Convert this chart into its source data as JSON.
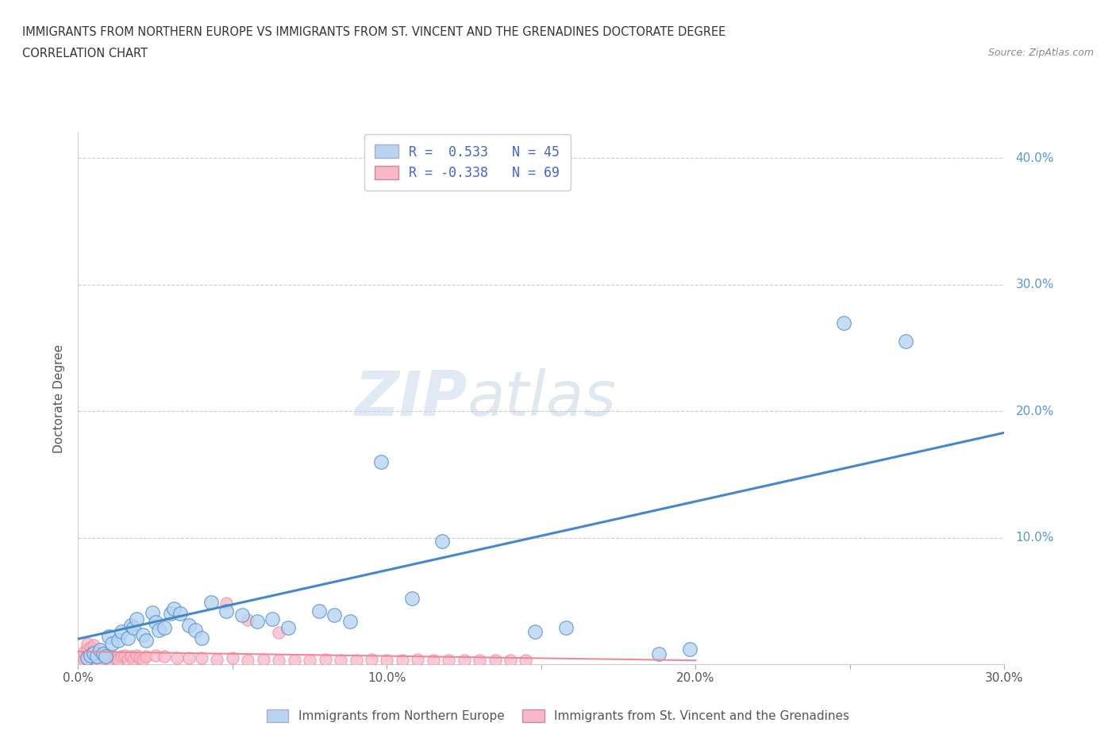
{
  "title_line1": "IMMIGRANTS FROM NORTHERN EUROPE VS IMMIGRANTS FROM ST. VINCENT AND THE GRENADINES DOCTORATE DEGREE",
  "title_line2": "CORRELATION CHART",
  "source": "Source: ZipAtlas.com",
  "ylabel": "Doctorate Degree",
  "x_min": 0.0,
  "x_max": 0.3,
  "y_min": 0.0,
  "y_max": 0.42,
  "x_ticks": [
    0.0,
    0.05,
    0.1,
    0.15,
    0.2,
    0.25,
    0.3
  ],
  "x_tick_labels": [
    "0.0%",
    "",
    "10.0%",
    "",
    "20.0%",
    "",
    "30.0%"
  ],
  "y_ticks": [
    0.0,
    0.1,
    0.2,
    0.3,
    0.4
  ],
  "y_tick_labels_right": [
    "",
    "10.0%",
    "20.0%",
    "30.0%",
    "40.0%"
  ],
  "legend1_label": "Immigrants from Northern Europe",
  "legend2_label": "Immigrants from St. Vincent and the Grenadines",
  "r1": 0.533,
  "n1": 45,
  "r2": -0.338,
  "n2": 69,
  "color_blue": "#b8d4f0",
  "color_pink": "#f8b8c8",
  "color_line_blue": "#4488cc",
  "color_line_pink": "#ee8899",
  "watermark_zip": "ZIP",
  "watermark_atlas": "atlas",
  "blue_points": [
    [
      0.003,
      0.005
    ],
    [
      0.004,
      0.007
    ],
    [
      0.005,
      0.009
    ],
    [
      0.006,
      0.006
    ],
    [
      0.007,
      0.011
    ],
    [
      0.008,
      0.008
    ],
    [
      0.009,
      0.006
    ],
    [
      0.01,
      0.022
    ],
    [
      0.011,
      0.016
    ],
    [
      0.013,
      0.019
    ],
    [
      0.014,
      0.026
    ],
    [
      0.016,
      0.021
    ],
    [
      0.017,
      0.031
    ],
    [
      0.018,
      0.029
    ],
    [
      0.019,
      0.036
    ],
    [
      0.021,
      0.023
    ],
    [
      0.022,
      0.019
    ],
    [
      0.024,
      0.041
    ],
    [
      0.025,
      0.033
    ],
    [
      0.026,
      0.027
    ],
    [
      0.028,
      0.029
    ],
    [
      0.03,
      0.04
    ],
    [
      0.031,
      0.044
    ],
    [
      0.033,
      0.04
    ],
    [
      0.036,
      0.031
    ],
    [
      0.038,
      0.027
    ],
    [
      0.04,
      0.021
    ],
    [
      0.043,
      0.049
    ],
    [
      0.048,
      0.042
    ],
    [
      0.053,
      0.039
    ],
    [
      0.058,
      0.034
    ],
    [
      0.063,
      0.036
    ],
    [
      0.068,
      0.029
    ],
    [
      0.078,
      0.042
    ],
    [
      0.083,
      0.039
    ],
    [
      0.088,
      0.034
    ],
    [
      0.098,
      0.16
    ],
    [
      0.108,
      0.052
    ],
    [
      0.118,
      0.097
    ],
    [
      0.148,
      0.026
    ],
    [
      0.158,
      0.029
    ],
    [
      0.188,
      0.008
    ],
    [
      0.198,
      0.012
    ],
    [
      0.248,
      0.27
    ],
    [
      0.268,
      0.255
    ]
  ],
  "pink_points": [
    [
      0.002,
      0.005
    ],
    [
      0.002,
      0.01
    ],
    [
      0.003,
      0.007
    ],
    [
      0.003,
      0.012
    ],
    [
      0.003,
      0.016
    ],
    [
      0.004,
      0.006
    ],
    [
      0.004,
      0.009
    ],
    [
      0.004,
      0.013
    ],
    [
      0.005,
      0.005
    ],
    [
      0.005,
      0.008
    ],
    [
      0.005,
      0.011
    ],
    [
      0.005,
      0.015
    ],
    [
      0.006,
      0.006
    ],
    [
      0.006,
      0.009
    ],
    [
      0.007,
      0.005
    ],
    [
      0.007,
      0.008
    ],
    [
      0.008,
      0.006
    ],
    [
      0.008,
      0.01
    ],
    [
      0.009,
      0.005
    ],
    [
      0.009,
      0.008
    ],
    [
      0.01,
      0.006
    ],
    [
      0.01,
      0.004
    ],
    [
      0.011,
      0.007
    ],
    [
      0.012,
      0.005
    ],
    [
      0.013,
      0.004
    ],
    [
      0.014,
      0.006
    ],
    [
      0.015,
      0.007
    ],
    [
      0.016,
      0.004
    ],
    [
      0.017,
      0.006
    ],
    [
      0.018,
      0.004
    ],
    [
      0.019,
      0.007
    ],
    [
      0.02,
      0.005
    ],
    [
      0.021,
      0.004
    ],
    [
      0.022,
      0.006
    ],
    [
      0.025,
      0.007
    ],
    [
      0.028,
      0.006
    ],
    [
      0.032,
      0.005
    ],
    [
      0.036,
      0.005
    ],
    [
      0.04,
      0.005
    ],
    [
      0.045,
      0.004
    ],
    [
      0.05,
      0.005
    ],
    [
      0.055,
      0.003
    ],
    [
      0.06,
      0.004
    ],
    [
      0.065,
      0.003
    ],
    [
      0.07,
      0.003
    ],
    [
      0.075,
      0.003
    ],
    [
      0.08,
      0.004
    ],
    [
      0.085,
      0.003
    ],
    [
      0.09,
      0.003
    ],
    [
      0.095,
      0.004
    ],
    [
      0.1,
      0.003
    ],
    [
      0.105,
      0.003
    ],
    [
      0.11,
      0.004
    ],
    [
      0.115,
      0.003
    ],
    [
      0.12,
      0.003
    ],
    [
      0.125,
      0.003
    ],
    [
      0.13,
      0.003
    ],
    [
      0.135,
      0.003
    ],
    [
      0.14,
      0.003
    ],
    [
      0.145,
      0.003
    ],
    [
      0.048,
      0.048
    ],
    [
      0.055,
      0.035
    ],
    [
      0.065,
      0.025
    ],
    [
      0.002,
      0.003
    ],
    [
      0.003,
      0.004
    ],
    [
      0.004,
      0.003
    ],
    [
      0.005,
      0.004
    ],
    [
      0.006,
      0.003
    ],
    [
      0.007,
      0.004
    ]
  ],
  "blue_line_x": [
    0.0,
    0.3
  ],
  "blue_line_y": [
    0.02,
    0.183
  ],
  "pink_line_x": [
    0.0,
    0.2
  ],
  "pink_line_y": [
    0.01,
    0.003
  ]
}
